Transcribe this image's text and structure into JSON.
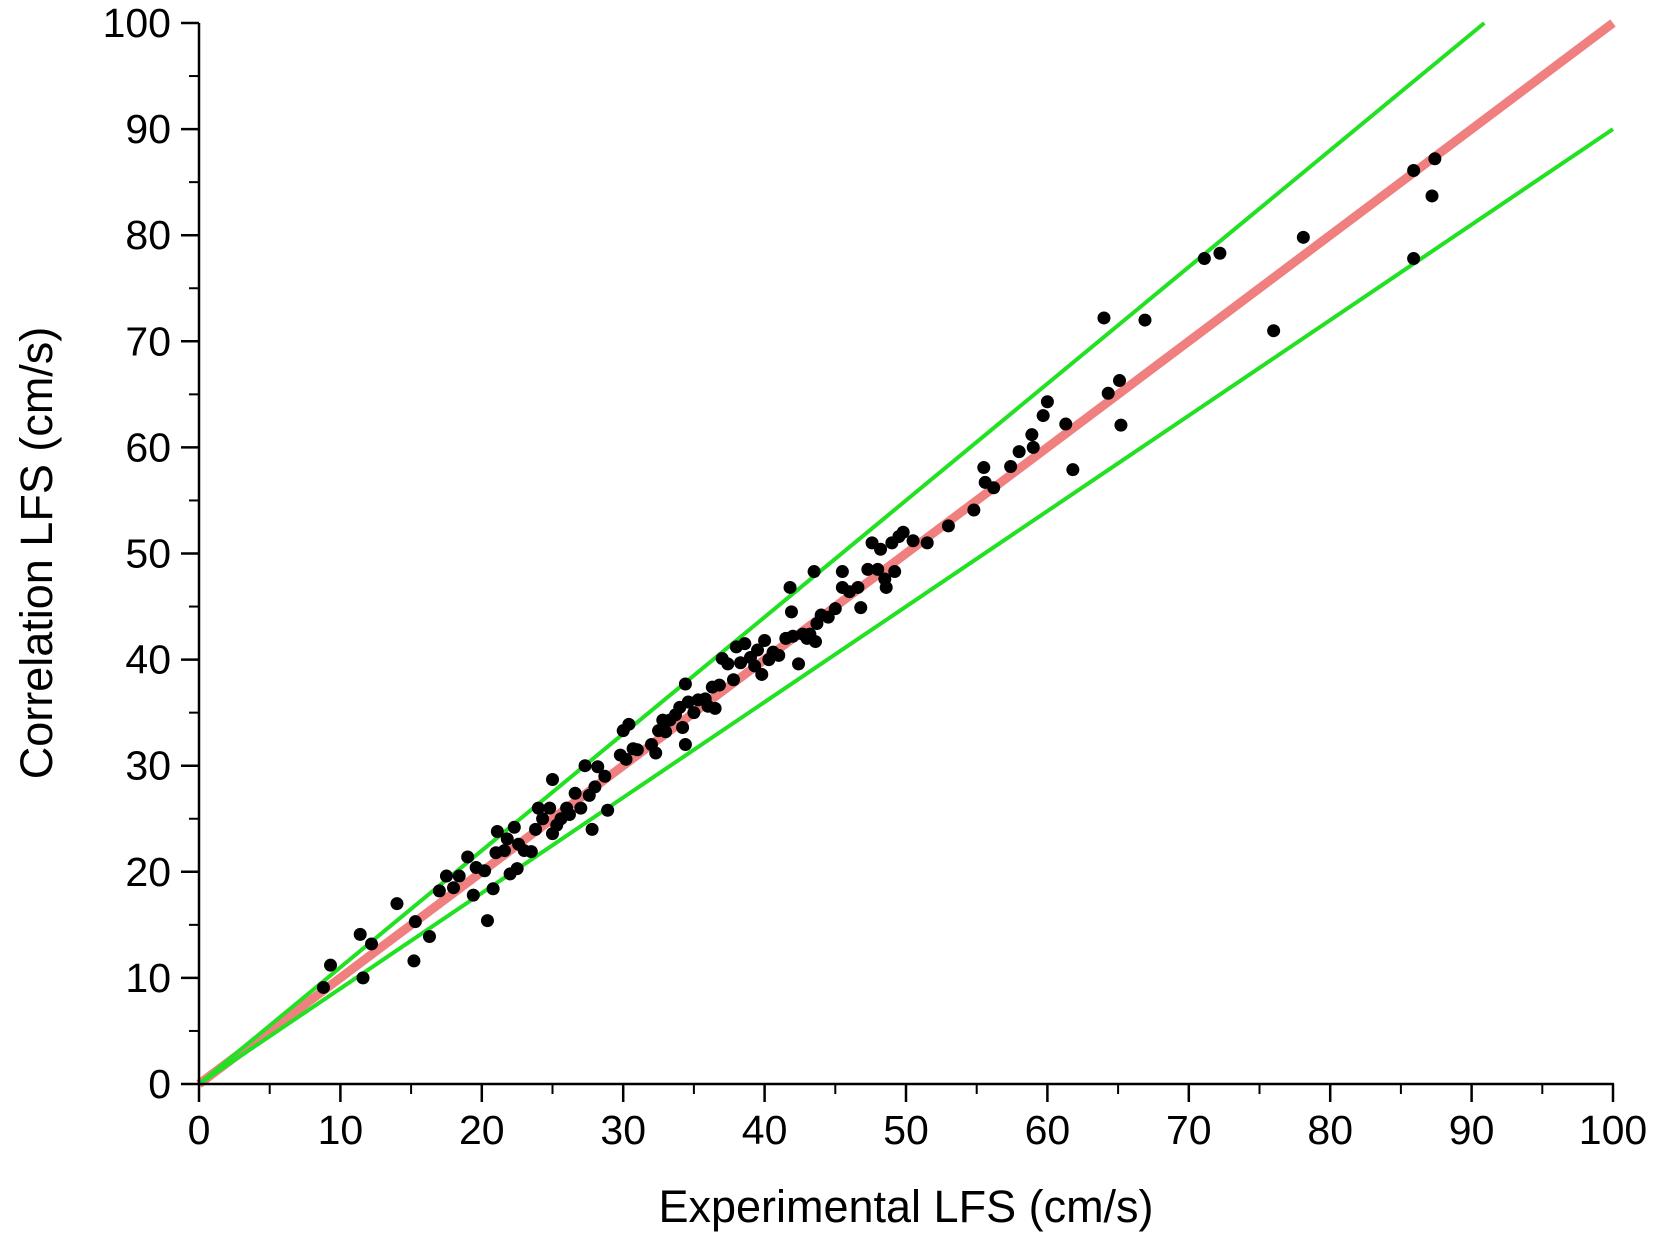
{
  "chart_data": {
    "type": "scatter",
    "x_label": "Experimental LFS (cm/s)",
    "y_label": "Correlation LFS (cm/s)",
    "xlim": [
      0,
      100
    ],
    "ylim": [
      0,
      100
    ],
    "xticks": [
      0,
      10,
      20,
      30,
      40,
      50,
      60,
      70,
      80,
      90,
      100
    ],
    "yticks": [
      0,
      10,
      20,
      30,
      40,
      50,
      60,
      70,
      80,
      90,
      100
    ],
    "color": "#000000",
    "x": [
      8.8,
      9.3,
      11.4,
      11.6,
      12.2,
      14,
      15.2,
      15.3,
      16.3,
      17,
      17.5,
      18,
      18.4,
      19,
      19.4,
      19.6,
      20.2,
      20.4,
      20.8,
      21,
      21.1,
      21.6,
      21.8,
      22,
      22.3,
      22.5,
      22.6,
      23,
      23.5,
      23.8,
      24,
      24.3,
      24.8,
      25,
      25,
      25.3,
      25.6,
      26,
      26.2,
      26.6,
      27,
      27.3,
      27.6,
      27.8,
      28,
      28.2,
      28.7,
      28.9,
      29.8,
      30,
      30.2,
      30.4,
      30.7,
      31,
      32,
      32.3,
      32.5,
      32.8,
      33,
      33.3,
      33.7,
      34,
      34.2,
      34.4,
      34.4,
      34.6,
      35,
      35.3,
      35.8,
      36,
      36.3,
      36.5,
      36.8,
      37,
      37.4,
      37.8,
      38,
      38.3,
      38.6,
      39,
      39.3,
      39.5,
      39.8,
      40,
      40.3,
      40.6,
      41,
      41.5,
      41.8,
      41.9,
      42,
      42.4,
      42.7,
      43,
      43.2,
      43.5,
      43.6,
      43.7,
      44,
      44.5,
      45,
      45.5,
      45.5,
      46,
      46.6,
      46.8,
      47.3,
      47.6,
      48,
      48.2,
      48.5,
      48.6,
      49,
      49.2,
      49.5,
      49.8,
      50.5,
      51.5,
      53,
      54.8,
      55.5,
      55.6,
      56.2,
      57.4,
      58,
      58.9,
      59,
      59.7,
      60,
      61.3,
      61.8,
      64,
      64.3,
      65.1,
      65.2,
      66.9,
      71.1,
      72.2,
      76,
      78.1,
      85.9,
      85.9,
      87.2,
      87.4
    ],
    "values": [
      9.1,
      11.2,
      14.1,
      10,
      13.2,
      17,
      11.6,
      15.3,
      13.9,
      18.2,
      19.6,
      18.5,
      19.6,
      21.4,
      17.8,
      20.4,
      20.1,
      15.4,
      18.4,
      21.8,
      23.8,
      22,
      23.1,
      19.8,
      24.2,
      20.3,
      22.6,
      22,
      21.9,
      24,
      26,
      25,
      26,
      23.6,
      28.7,
      24.4,
      25,
      26,
      25.4,
      27.4,
      26,
      30,
      27.2,
      24,
      28,
      29.9,
      29,
      25.8,
      31,
      33.3,
      30.6,
      33.9,
      31.6,
      31.5,
      32,
      31.2,
      33.3,
      34.3,
      33.2,
      34.3,
      34.8,
      35.5,
      33.6,
      37.7,
      32,
      36,
      35,
      36.2,
      36.3,
      35.6,
      37.4,
      35.4,
      37.6,
      40.1,
      39.6,
      38.1,
      41.2,
      39.7,
      41.5,
      40.2,
      39.4,
      40.9,
      38.6,
      41.8,
      40,
      40.7,
      40.4,
      42,
      46.8,
      44.5,
      42.2,
      39.6,
      42.4,
      42,
      42.4,
      48.3,
      41.7,
      43.4,
      44.2,
      44,
      44.8,
      46.8,
      48.3,
      46.4,
      46.8,
      44.9,
      48.5,
      51,
      48.5,
      50.4,
      47.6,
      46.8,
      51,
      48.3,
      51.6,
      52,
      51.2,
      51,
      52.6,
      54.1,
      58.1,
      56.7,
      56.2,
      58.2,
      59.6,
      61.2,
      60,
      63,
      64.3,
      62.2,
      57.9,
      72.2,
      65.1,
      66.3,
      62.1,
      72,
      77.8,
      78.3,
      71,
      79.8,
      77.8,
      86.1,
      83.7,
      87.2
    ],
    "lines": [
      {
        "color": "#f08080",
        "x": [
          0,
          100
        ],
        "values": [
          0,
          100
        ]
      },
      {
        "color": "#22e022",
        "x": [
          0,
          90.9
        ],
        "values": [
          0,
          100
        ]
      },
      {
        "color": "#22e022",
        "x": [
          0,
          100
        ],
        "values": [
          0,
          90
        ]
      }
    ]
  }
}
